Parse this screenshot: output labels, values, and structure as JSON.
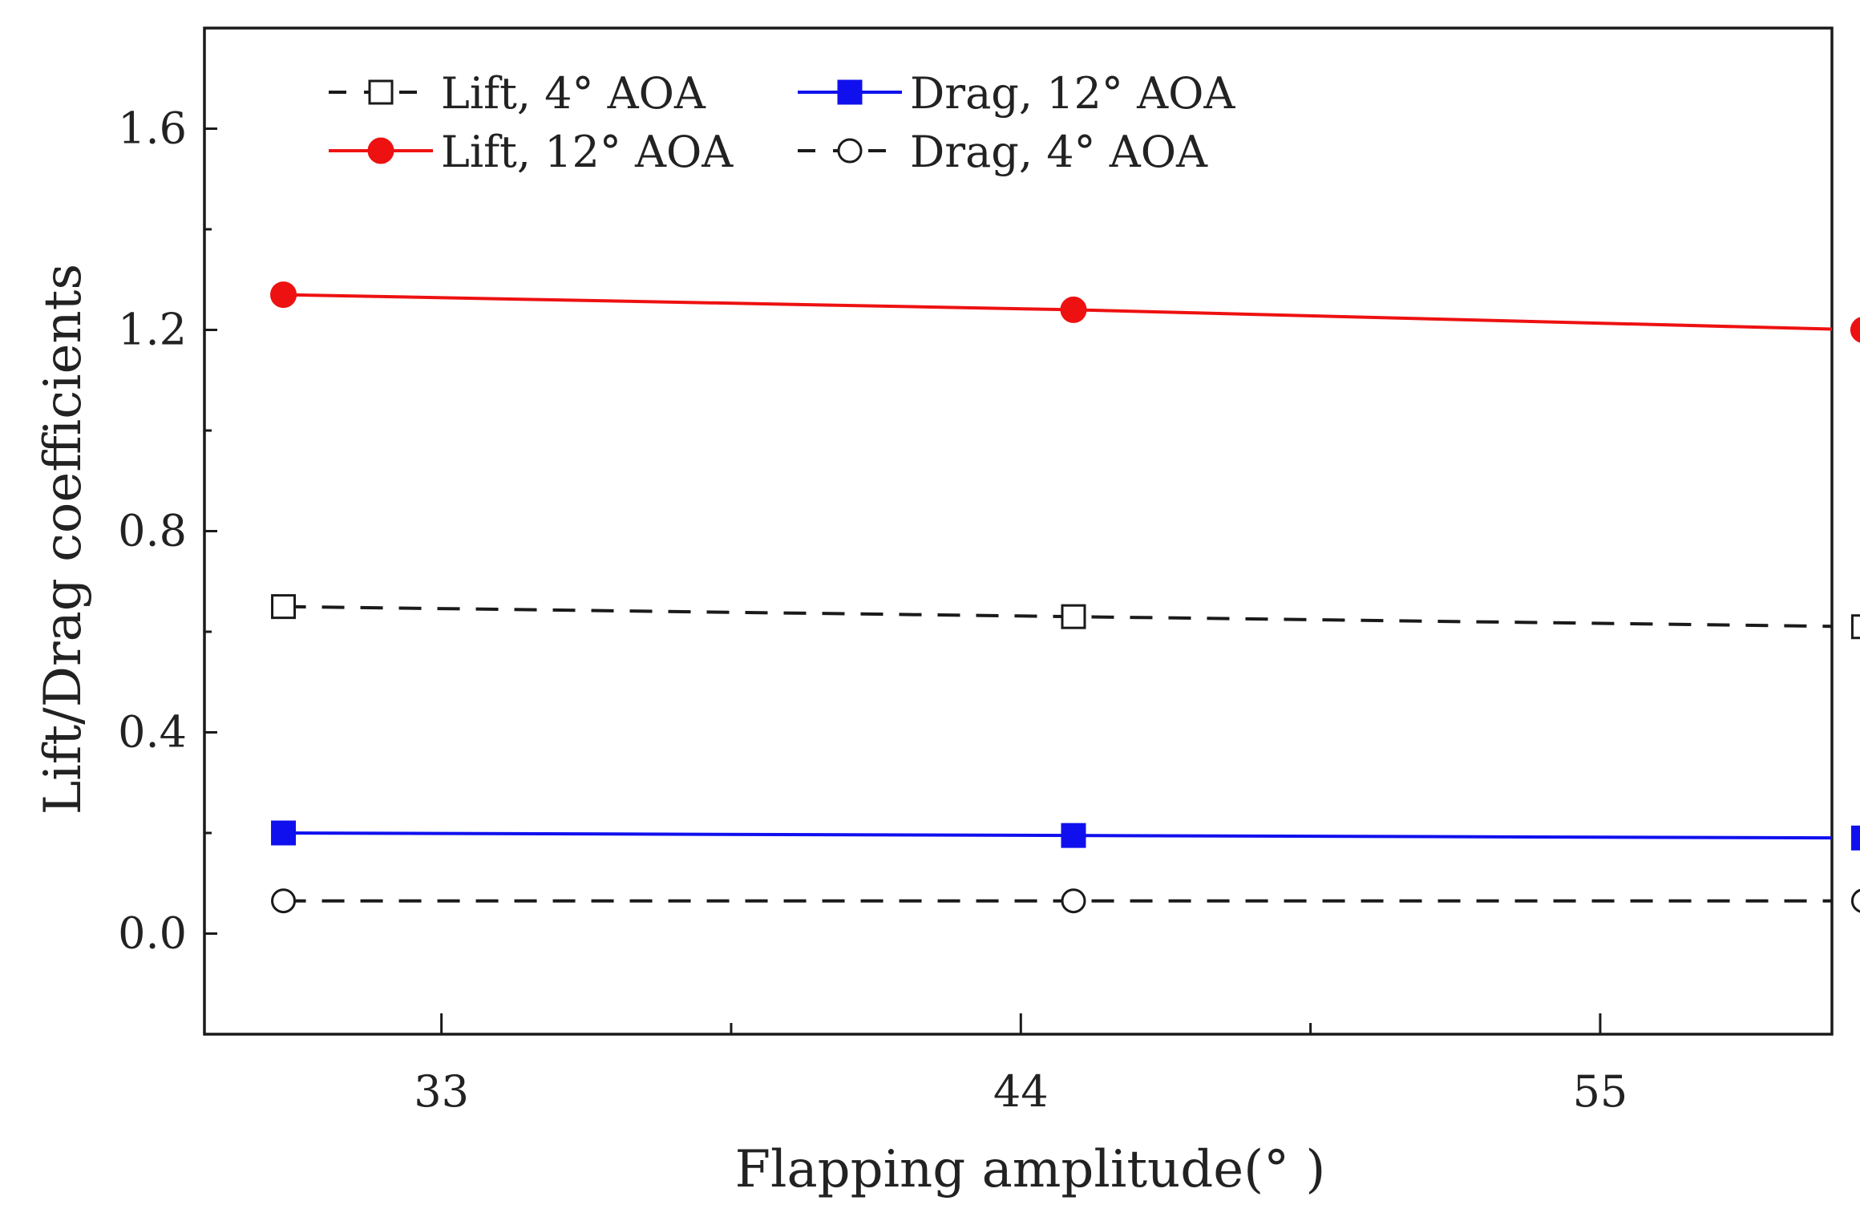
{
  "chart_data": {
    "type": "line",
    "title": "",
    "xlabel": "Flapping amplitude(° )",
    "ylabel": "Lift/Drag coefficients",
    "xlim": [
      28.5,
      59.4
    ],
    "ylim": [
      -0.2,
      1.8
    ],
    "xticks": [
      33,
      44,
      55
    ],
    "xtick_labels": [
      "33",
      "44",
      "55"
    ],
    "xminor": [
      38.5,
      49.5,
      60.5
    ],
    "yticks": [
      0.0,
      0.4,
      0.8,
      1.2,
      1.6
    ],
    "ytick_labels": [
      "0.0",
      "0.4",
      "0.8",
      "1.2",
      "1.6"
    ],
    "yminor": [
      -0.2,
      0.2,
      0.6,
      1.0,
      1.4
    ],
    "x": [
      30,
      45,
      60
    ],
    "legend_position": "top-left",
    "series": [
      {
        "name": "Lift, 4° AOA",
        "values": [
          0.65,
          0.63,
          0.61
        ],
        "color": "#1a1a1a",
        "dash": "dashed",
        "marker": "square-open"
      },
      {
        "name": "Lift, 12° AOA",
        "values": [
          1.27,
          1.24,
          1.2
        ],
        "color": "#ee1111",
        "dash": "solid",
        "marker": "circle-filled"
      },
      {
        "name": "Drag, 12° AOA",
        "values": [
          0.2,
          0.195,
          0.19
        ],
        "color": "#1010ee",
        "dash": "solid",
        "marker": "square-filled"
      },
      {
        "name": "Drag, 4° AOA",
        "values": [
          0.065,
          0.065,
          0.065
        ],
        "color": "#1a1a1a",
        "dash": "dashed",
        "marker": "circle-open"
      }
    ]
  }
}
